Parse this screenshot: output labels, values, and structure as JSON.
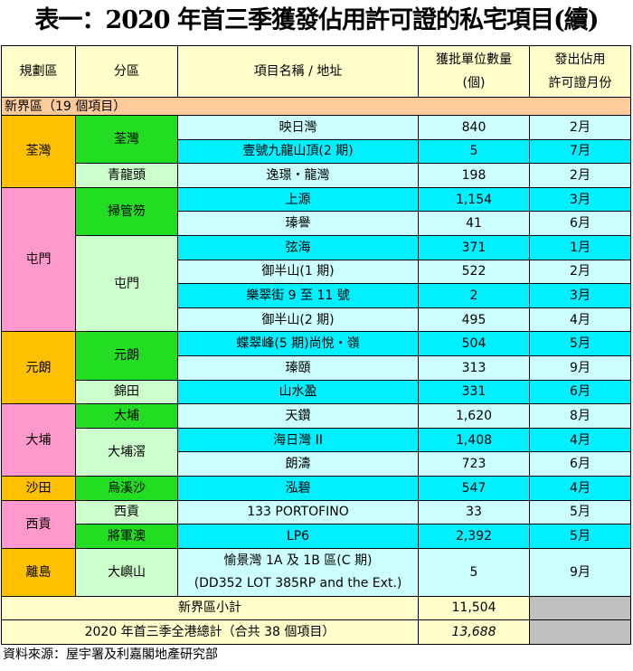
{
  "title": "表一：2020 年首三季獲發佔用許可證的私宅項目(續)",
  "headers": {
    "region": "規劃區",
    "district": "分區",
    "project": "項目名稱 / 地址",
    "units_line1": "獲批單位數量",
    "units_line2": "(個)",
    "month_line1": "發出佔用",
    "month_line2": "許可證月份"
  },
  "section_label": "新界區（19 個項目）",
  "colors": {
    "orange": "#FFC000",
    "pink": "#FF99CC",
    "green": "#22DD22",
    "light_green": "#CCFFCC",
    "cyan": "#00F0FF",
    "light_cyan": "#CCFFFF",
    "header": "#FFFFCC",
    "section": "#FFCC99",
    "grey": "#C0C0C0"
  },
  "regions": [
    {
      "name": "荃灣",
      "color": "orange",
      "districts": [
        {
          "name": "荃灣",
          "color": "green",
          "projects": [
            {
              "name": "映日灣",
              "units": "840",
              "month": "2月"
            },
            {
              "name": "壹號九龍山頂(2 期)",
              "units": "5",
              "month": "7月"
            }
          ]
        },
        {
          "name": "青龍頭",
          "color": "lgreen",
          "projects": [
            {
              "name": "逸璟・龍灣",
              "units": "198",
              "month": "2月"
            }
          ]
        }
      ]
    },
    {
      "name": "屯門",
      "color": "pink",
      "districts": [
        {
          "name": "掃管笏",
          "color": "green",
          "projects": [
            {
              "name": "上源",
              "units": "1,154",
              "month": "3月"
            },
            {
              "name": "瑧譽",
              "units": "41",
              "month": "6月"
            }
          ]
        },
        {
          "name": "屯門",
          "color": "lgreen",
          "projects": [
            {
              "name": "弦海",
              "units": "371",
              "month": "1月"
            },
            {
              "name": "御半山(1 期)",
              "units": "522",
              "month": "2月"
            },
            {
              "name": "樂翠街 9 至 11 號",
              "units": "2",
              "month": "3月"
            },
            {
              "name": "御半山(2 期)",
              "units": "495",
              "month": "4月"
            }
          ]
        }
      ]
    },
    {
      "name": "元朗",
      "color": "orange",
      "districts": [
        {
          "name": "元朗",
          "color": "green",
          "projects": [
            {
              "name": "蝶翠峰(5 期)尚悅・嶺",
              "units": "504",
              "month": "5月"
            },
            {
              "name": "瑧頤",
              "units": "313",
              "month": "9月"
            }
          ]
        },
        {
          "name": "錦田",
          "color": "lgreen",
          "projects": [
            {
              "name": "山水盈",
              "units": "331",
              "month": "6月"
            }
          ]
        }
      ]
    },
    {
      "name": "大埔",
      "color": "pink",
      "districts": [
        {
          "name": "大埔",
          "color": "green",
          "projects": [
            {
              "name": "天鑽",
              "units": "1,620",
              "month": "8月"
            }
          ]
        },
        {
          "name": "大埔滘",
          "color": "lgreen",
          "projects": [
            {
              "name": "海日灣 II",
              "units": "1,408",
              "month": "4月"
            },
            {
              "name": "朗濤",
              "units": "723",
              "month": "6月"
            }
          ]
        }
      ]
    },
    {
      "name": "沙田",
      "color": "orange",
      "districts": [
        {
          "name": "烏溪沙",
          "color": "green",
          "projects": [
            {
              "name": "泓碧",
              "units": "547",
              "month": "4月"
            }
          ]
        }
      ]
    },
    {
      "name": "西貢",
      "color": "pink",
      "districts": [
        {
          "name": "西貢",
          "color": "lgreen",
          "projects": [
            {
              "name": "133 PORTOFINO",
              "units": "33",
              "month": "5月"
            }
          ]
        },
        {
          "name": "將軍澳",
          "color": "green",
          "projects": [
            {
              "name": "LP6",
              "units": "2,392",
              "month": "5月"
            }
          ]
        }
      ]
    },
    {
      "name": "離島",
      "color": "orange",
      "districts": [
        {
          "name": "大嶼山",
          "color": "lgreen",
          "projects": [
            {
              "name": "愉景灣 1A 及 1B 區(C 期)",
              "name2": "(DD352 LOT 385RP and the Ext.)",
              "units": "5",
              "month": "9月"
            }
          ]
        }
      ]
    }
  ],
  "subtotal": {
    "label": "新界區小計",
    "units": "11,504"
  },
  "total": {
    "label": "2020 年首三季全港總計（合共 38 個項目）",
    "units": "13,688"
  },
  "source": "資料來源：屋宇署及利嘉閣地產研究部"
}
